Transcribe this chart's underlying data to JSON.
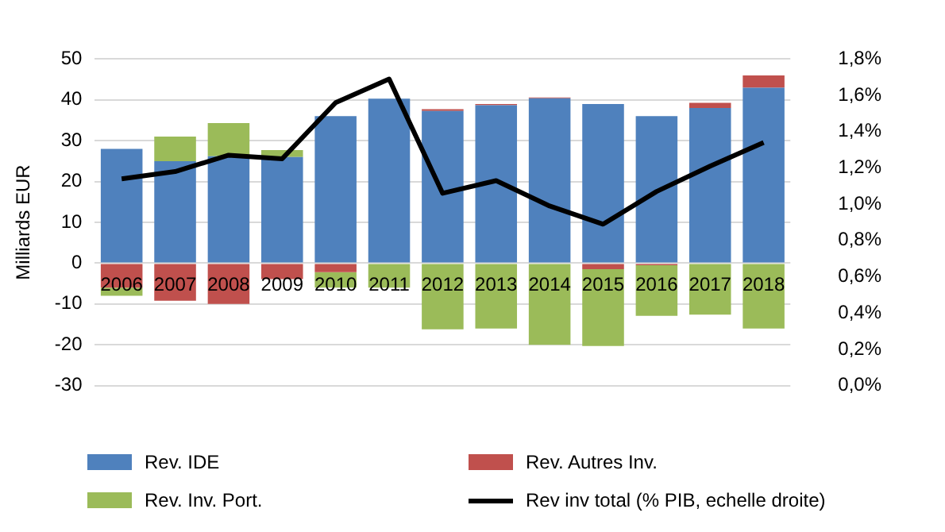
{
  "chart_data": {
    "type": "bar",
    "stacked": true,
    "ylabel": "Milliards EUR",
    "categories": [
      "2006",
      "2007",
      "2008",
      "2009",
      "2010",
      "2011",
      "2012",
      "2013",
      "2014",
      "2015",
      "2016",
      "2017",
      "2018"
    ],
    "series": [
      {
        "name": "Rev. IDE",
        "color": "#4f81bd",
        "values": [
          28,
          25,
          26.2,
          26,
          36,
          40.3,
          37.3,
          38.7,
          40.4,
          39,
          36,
          38,
          43
        ]
      },
      {
        "name": "Rev. Autres Inv.",
        "color": "#c0504d",
        "values": [
          -6,
          -9.2,
          -10,
          -3.9,
          -2.2,
          0,
          0.4,
          0.3,
          0.2,
          -1.5,
          -0.5,
          1.3,
          3
        ]
      },
      {
        "name": "Rev. Inv. Port.",
        "color": "#9bbb59",
        "values": [
          -2,
          6,
          8.1,
          1.7,
          -3.8,
          -6,
          -16.2,
          -16,
          -20,
          -18.8,
          -12.4,
          -12.6,
          -16
        ]
      },
      {
        "name": "Rev inv total (% PIB, echelle droite)",
        "type": "line",
        "axis": "y2",
        "color": "#000000",
        "values": [
          1.14,
          1.18,
          1.27,
          1.25,
          1.56,
          1.69,
          1.06,
          1.13,
          0.99,
          0.89,
          1.07,
          1.21,
          1.34
        ]
      }
    ],
    "ylim": [
      -30,
      50
    ],
    "yticks": [
      -30,
      -20,
      -10,
      0,
      10,
      20,
      30,
      40,
      50
    ],
    "y2lim": [
      0,
      1.8
    ],
    "y2ticks": [
      {
        "value": 0,
        "label": "0,0%"
      },
      {
        "value": 0.2,
        "label": "0,2%"
      },
      {
        "value": 0.4,
        "label": "0,4%"
      },
      {
        "value": 0.6,
        "label": "0,6%"
      },
      {
        "value": 0.8,
        "label": "0,8%"
      },
      {
        "value": 1.0,
        "label": "1,0%"
      },
      {
        "value": 1.2,
        "label": "1,2%"
      },
      {
        "value": 1.4,
        "label": "1,4%"
      },
      {
        "value": 1.6,
        "label": "1,6%"
      },
      {
        "value": 1.8,
        "label": "1,8%"
      }
    ],
    "grid": "y",
    "legend": "bottom",
    "marker": "none",
    "line_style": "solid"
  }
}
